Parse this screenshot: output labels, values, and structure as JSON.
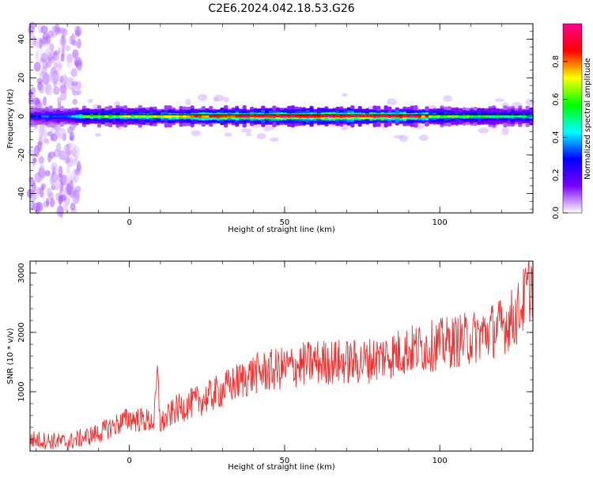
{
  "title": "C2E6.2024.042.18.53.G26",
  "colorbar": {
    "label": "Normalized spectral amplitude",
    "range": [
      0,
      1
    ],
    "ticks": [
      "0.0",
      "0.2",
      "0.4",
      "0.6",
      "0.8"
    ],
    "tick_values": [
      0.0,
      0.2,
      0.4,
      0.6,
      0.8
    ],
    "colormap": [
      "#ffffff",
      "#7b00ff",
      "#0000ff",
      "#00ffff",
      "#00ff00",
      "#ffff00",
      "#ff0000",
      "#ff0090"
    ]
  },
  "chart_data": [
    {
      "type": "heatmap",
      "xlabel": "Height of straight line (km)",
      "ylabel": "Frequency (Hz)",
      "xlim": [
        -32,
        130
      ],
      "ylim": [
        -50,
        48
      ],
      "xticks": [
        0,
        50,
        100
      ],
      "yticks": [
        -40,
        -20,
        0,
        20,
        40
      ],
      "ridge": {
        "frequency_hz": 0,
        "amplitude_profile": [
          {
            "x": -32,
            "amp": 0.25
          },
          {
            "x": -20,
            "amp": 0.3
          },
          {
            "x": -15,
            "amp": 0.55
          },
          {
            "x": 0,
            "amp": 0.6
          },
          {
            "x": 20,
            "amp": 0.7
          },
          {
            "x": 40,
            "amp": 0.9
          },
          {
            "x": 60,
            "amp": 0.95
          },
          {
            "x": 80,
            "amp": 0.95
          },
          {
            "x": 92,
            "amp": 0.85
          },
          {
            "x": 100,
            "amp": 0.55
          },
          {
            "x": 130,
            "amp": 0.45
          }
        ]
      },
      "noise_band_x": [
        -32,
        -16
      ],
      "colors": {
        "ridge_line": "#000000"
      }
    },
    {
      "type": "line",
      "xlabel": "Height of straight line (km)",
      "ylabel": "SNR (10 * v/v)",
      "xlim": [
        -32,
        130
      ],
      "ylim": [
        0,
        3200
      ],
      "xticks": [
        0,
        50,
        100
      ],
      "yticks": [
        1000,
        2000,
        3000
      ],
      "series": [
        {
          "color": "#ee3333",
          "x": [
            -32,
            -20,
            -10,
            0,
            8,
            9,
            10,
            15,
            25,
            40,
            50,
            60,
            75,
            90,
            100,
            110,
            120,
            125,
            130
          ],
          "y": [
            200,
            150,
            300,
            550,
            500,
            1300,
            450,
            700,
            900,
            1300,
            1400,
            1500,
            1500,
            1700,
            1800,
            1900,
            2100,
            2300,
            2900
          ]
        }
      ]
    }
  ]
}
